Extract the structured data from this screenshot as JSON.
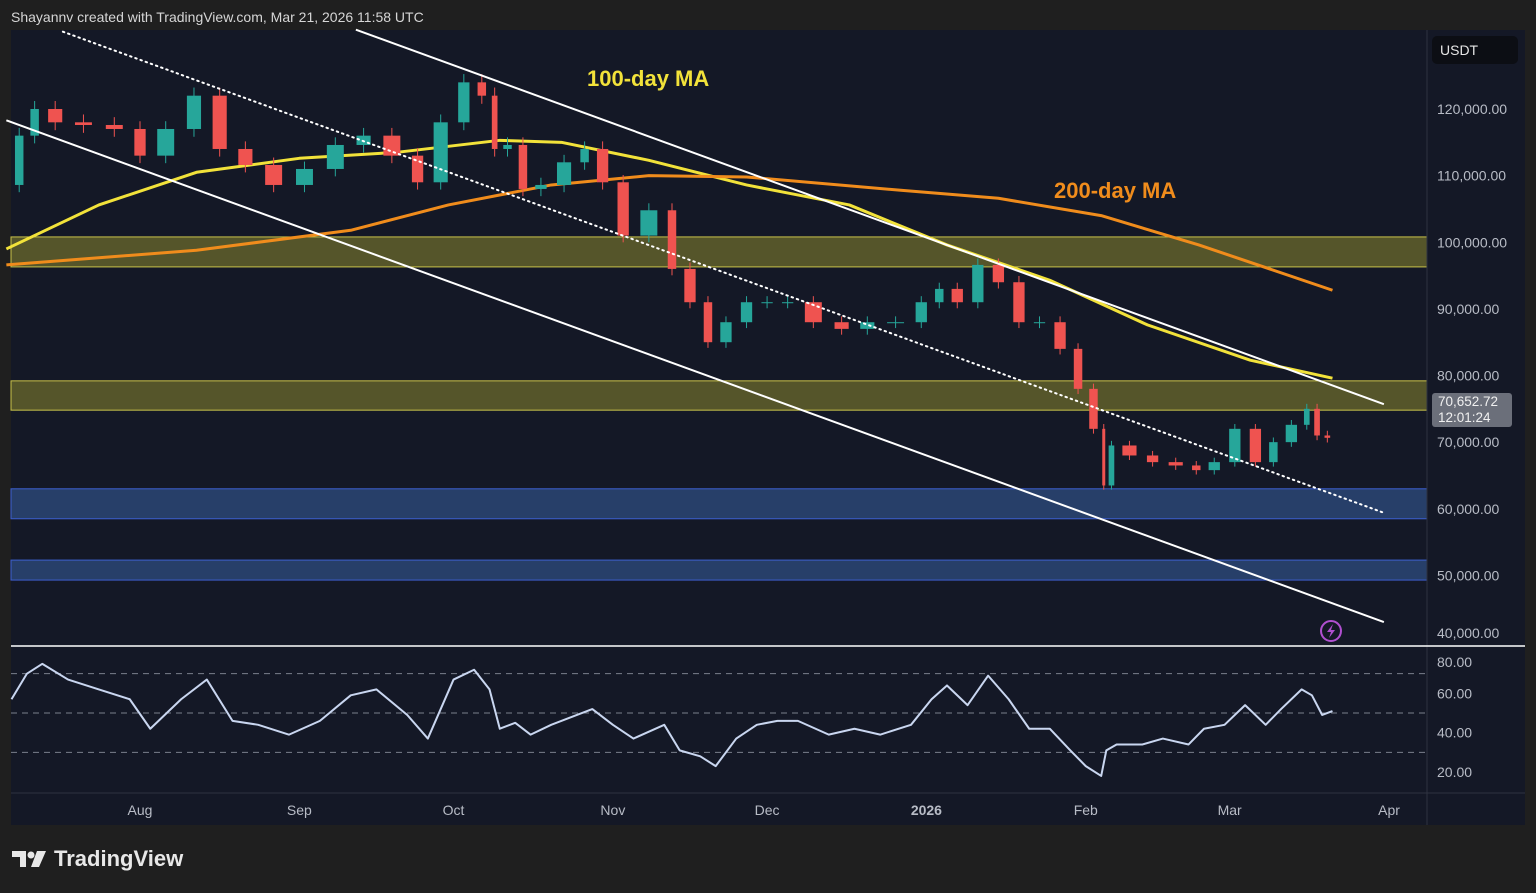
{
  "header": {
    "credit": "Shayannv created with TradingView.com, Mar 21, 2026 11:58 UTC"
  },
  "footer": {
    "brand": "TradingView"
  },
  "price_axis": {
    "currency": "USDT",
    "last_price": "70,652.72",
    "countdown": "12:01:24"
  },
  "colors": {
    "background": "#141826",
    "up": "#26a69a",
    "down": "#ef5350",
    "ma100": "#f2e23a",
    "ma200": "#f08c1c",
    "supply_zone": "#6b6a2c",
    "demand_zone": "#2c4a7a",
    "rsi": "#c9d6f0",
    "trendline": "#ffffff"
  },
  "icons": {
    "alert": "lightning-icon"
  },
  "chart_data": [
    {
      "type": "candlestick",
      "title": "",
      "ylim": [
        40000,
        130000
      ],
      "y_ticks": [
        "120,000.00",
        "110,000.00",
        "100,000.00",
        "90,000.00",
        "80,000.00",
        "70,000.00",
        "60,000.00",
        "50,000.00",
        "40,000.00"
      ],
      "y_tick_values": [
        120000,
        110000,
        100000,
        90000,
        80000,
        70000,
        60000,
        50000,
        40000
      ],
      "x_ticks": [
        {
          "label": "Aug",
          "date": "2025-08-01"
        },
        {
          "label": "Sep",
          "date": "2025-09-01"
        },
        {
          "label": "Oct",
          "date": "2025-10-01"
        },
        {
          "label": "Nov",
          "date": "2025-11-01"
        },
        {
          "label": "Dec",
          "date": "2025-12-01"
        },
        {
          "label": "2026",
          "date": "2026-01-01"
        },
        {
          "label": "Feb",
          "date": "2026-02-01"
        },
        {
          "label": "Mar",
          "date": "2026-03-01"
        },
        {
          "label": "Apr",
          "date": "2026-04-01"
        }
      ],
      "dates": [
        "2025-07-07",
        "2025-07-10",
        "2025-07-13",
        "2025-07-18",
        "2025-07-24",
        "2025-07-30",
        "2025-08-03",
        "2025-08-09",
        "2025-08-14",
        "2025-08-19",
        "2025-08-24",
        "2025-08-30",
        "2025-09-05",
        "2025-09-11",
        "2025-09-16",
        "2025-09-22",
        "2025-09-26",
        "2025-10-01",
        "2025-10-05",
        "2025-10-08",
        "2025-10-10",
        "2025-10-13",
        "2025-10-16",
        "2025-10-20",
        "2025-10-25",
        "2025-10-28",
        "2025-11-01",
        "2025-11-05",
        "2025-11-11",
        "2025-11-14",
        "2025-11-18",
        "2025-11-21",
        "2025-11-25",
        "2025-11-29",
        "2025-12-03",
        "2025-12-07",
        "2025-12-13",
        "2025-12-18",
        "2025-12-23",
        "2025-12-29",
        "2026-01-02",
        "2026-01-05",
        "2026-01-09",
        "2026-01-13",
        "2026-01-17",
        "2026-01-21",
        "2026-01-25",
        "2026-01-29",
        "2026-02-01",
        "2026-02-04",
        "2026-02-05",
        "2026-02-07",
        "2026-02-12",
        "2026-02-16",
        "2026-02-21",
        "2026-02-24",
        "2026-02-28",
        "2026-03-04",
        "2026-03-08",
        "2026-03-11",
        "2026-03-15",
        "2026-03-17",
        "2026-03-19",
        "2026-03-21"
      ],
      "closes": [
        108600,
        116000,
        120000,
        118000,
        117600,
        117000,
        113000,
        117000,
        122000,
        114000,
        111600,
        108600,
        111000,
        114600,
        116000,
        113000,
        109000,
        118000,
        124000,
        122000,
        114000,
        114600,
        108000,
        108600,
        112000,
        114000,
        109000,
        101000,
        104800,
        96000,
        91000,
        85000,
        88000,
        91000,
        91000,
        91000,
        88000,
        87000,
        88000,
        88000,
        91000,
        93000,
        91000,
        96600,
        94000,
        88000,
        88000,
        84000,
        78000,
        72000,
        63500,
        69500,
        68000,
        67000,
        66500,
        65800,
        67000,
        72000,
        67000,
        70000,
        72600,
        75000,
        71000,
        70652.72
      ],
      "series": [
        {
          "name": "100-day MA",
          "type": "line",
          "points": [
            [
              "2025-07-06",
              99000
            ],
            [
              "2025-07-24",
              105600
            ],
            [
              "2025-08-12",
              110500
            ],
            [
              "2025-09-01",
              112600
            ],
            [
              "2025-09-20",
              113500
            ],
            [
              "2025-10-10",
              115300
            ],
            [
              "2025-10-22",
              115000
            ],
            [
              "2025-11-08",
              112300
            ],
            [
              "2025-11-27",
              108600
            ],
            [
              "2025-12-17",
              105600
            ],
            [
              "2026-01-05",
              99600
            ],
            [
              "2026-01-25",
              94300
            ],
            [
              "2026-02-13",
              87600
            ],
            [
              "2026-03-05",
              82300
            ],
            [
              "2026-03-21",
              79600
            ]
          ]
        },
        {
          "name": "200-day MA",
          "type": "line",
          "points": [
            [
              "2025-07-06",
              96600
            ],
            [
              "2025-08-12",
              98800
            ],
            [
              "2025-09-11",
              101800
            ],
            [
              "2025-09-30",
              105600
            ],
            [
              "2025-10-20",
              108600
            ],
            [
              "2025-11-08",
              110000
            ],
            [
              "2025-11-27",
              109800
            ],
            [
              "2025-12-27",
              107800
            ],
            [
              "2026-01-15",
              106600
            ],
            [
              "2026-02-04",
              104000
            ],
            [
              "2026-02-23",
              99600
            ],
            [
              "2026-03-21",
              92800
            ]
          ]
        }
      ],
      "zones": [
        {
          "kind": "supply",
          "range": [
            96300,
            100800
          ]
        },
        {
          "kind": "supply",
          "range": [
            74800,
            79200
          ]
        },
        {
          "kind": "demand",
          "range": [
            58500,
            63000
          ]
        },
        {
          "kind": "demand",
          "range": [
            49300,
            52300
          ]
        }
      ],
      "trendlines": [
        {
          "style": "solid",
          "from": [
            "2025-09-12",
            131900
          ],
          "to": [
            "2026-03-31",
            75700
          ]
        },
        {
          "style": "solid",
          "from": [
            "2025-07-06",
            118300
          ],
          "to": [
            "2026-03-31",
            43000
          ]
        },
        {
          "style": "dotted",
          "from": [
            "2025-07-17",
            131600
          ],
          "to": [
            "2026-03-31",
            59400
          ]
        }
      ]
    },
    {
      "type": "line",
      "title": "",
      "ylim": [
        10,
        85
      ],
      "y_ticks": [
        "80.00",
        "60.00",
        "40.00",
        "20.00"
      ],
      "y_tick_values": [
        80,
        60,
        40,
        20
      ],
      "reference_lines": [
        70,
        50,
        30
      ],
      "rsi": [
        57,
        70,
        75,
        67,
        62,
        57,
        42,
        57,
        67,
        46,
        44,
        39,
        46,
        59,
        62,
        49,
        37,
        67,
        72,
        62,
        42,
        45,
        39,
        44,
        49,
        52,
        44,
        37,
        44,
        31,
        28,
        23,
        37,
        44,
        46,
        46,
        39,
        42,
        39,
        44,
        57,
        64,
        54,
        69,
        57,
        42,
        42,
        31,
        23,
        18,
        31,
        34,
        34,
        37,
        34,
        42,
        44,
        54,
        44,
        52,
        62,
        59,
        49,
        51
      ]
    }
  ]
}
